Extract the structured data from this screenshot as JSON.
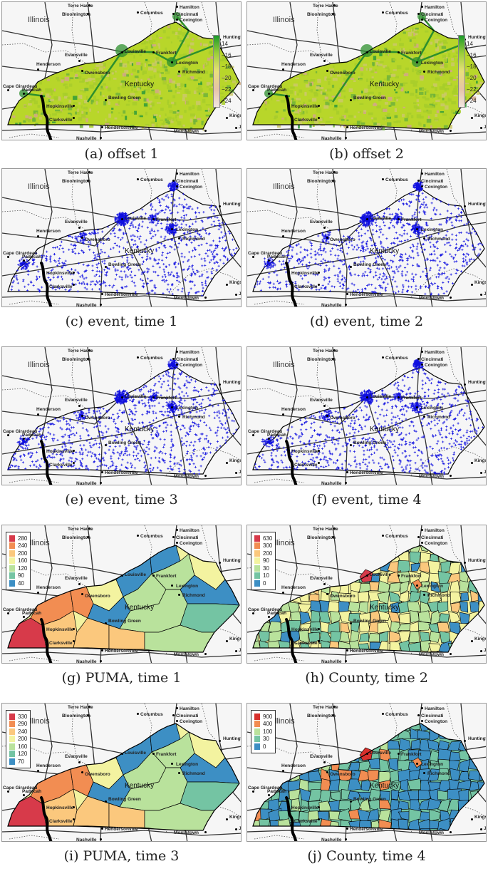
{
  "cities": [
    {
      "name": "Terre Haute"
    },
    {
      "name": "Columbus"
    },
    {
      "name": "Bloomington"
    },
    {
      "name": "Hamilton"
    },
    {
      "name": "Cincinnati"
    },
    {
      "name": "Covington"
    },
    {
      "name": "Louisville"
    },
    {
      "name": "Frankfort"
    },
    {
      "name": "Lexington"
    },
    {
      "name": "Richmond"
    },
    {
      "name": "Huntington"
    },
    {
      "name": "Evansville"
    },
    {
      "name": "Henderson"
    },
    {
      "name": "Owensboro"
    },
    {
      "name": "Cape Girardeau"
    },
    {
      "name": "Paducah"
    },
    {
      "name": "Hopkinsville"
    },
    {
      "name": "Bowling Green"
    },
    {
      "name": "Clarksville"
    },
    {
      "name": "Hendersonville"
    },
    {
      "name": "Nashville"
    },
    {
      "name": "Kingsport"
    },
    {
      "name": "Morristown"
    },
    {
      "name": "Johnson City"
    }
  ],
  "state_labels": {
    "illinois": "Illinois",
    "kentucky": "Kentucky"
  },
  "panels": [
    {
      "caption": "(a) offset 1",
      "kind": "offset"
    },
    {
      "caption": "(b) offset 2",
      "kind": "offset"
    },
    {
      "caption": "(c) event, time 1",
      "kind": "event"
    },
    {
      "caption": "(d) event, time 2",
      "kind": "event"
    },
    {
      "caption": "(e) event, time 3",
      "kind": "event"
    },
    {
      "caption": "(f) event, time 4",
      "kind": "event"
    },
    {
      "caption": "(g) PUMA, time 1",
      "kind": "puma",
      "legend": [
        "280",
        "240",
        "200",
        "160",
        "120",
        "90",
        "40"
      ],
      "colors": [
        "#d73a4a",
        "#f28d52",
        "#fbc87d",
        "#f3f3a0",
        "#b9e29c",
        "#74c4a3",
        "#3d8fc4"
      ]
    },
    {
      "caption": "(h) County, time 2",
      "kind": "county",
      "legend": [
        "630",
        "300",
        "200",
        "90",
        "30",
        "10",
        "0"
      ],
      "colors": [
        "#d73a4a",
        "#f28d52",
        "#fbc87d",
        "#f3f3a0",
        "#b9e29c",
        "#74c4a3",
        "#3d8fc4"
      ]
    },
    {
      "caption": "(i) PUMA, time 3",
      "kind": "puma",
      "legend": [
        "330",
        "290",
        "240",
        "200",
        "160",
        "120",
        "70"
      ],
      "colors": [
        "#d73a4a",
        "#f28d52",
        "#fbc87d",
        "#f3f3a0",
        "#b9e29c",
        "#74c4a3",
        "#3d8fc4"
      ]
    },
    {
      "caption": "(j) County, time 4",
      "kind": "county",
      "legend": [
        "900",
        "400",
        "100",
        "30",
        "0"
      ],
      "colors": [
        "#d7302c",
        "#f28d52",
        "#b9e29c",
        "#74c4a3",
        "#3d8fc4"
      ]
    }
  ],
  "offset_scale": [
    "14",
    "16",
    "18",
    "20",
    "22",
    "24"
  ],
  "colors": {
    "event_marker": "#1010e0",
    "offset_green": "#b8d62a",
    "offset_dark": "#2d8f2d",
    "kentucky_border": "#000000"
  }
}
